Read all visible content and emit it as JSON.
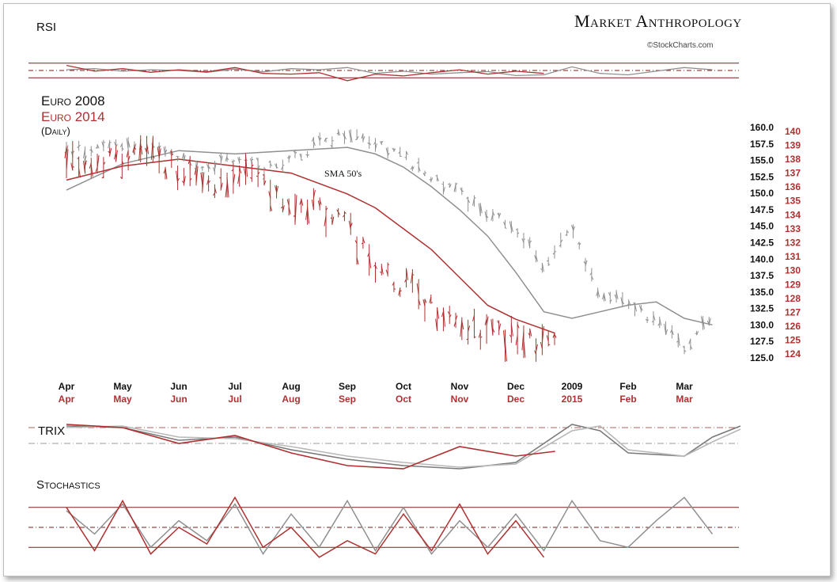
{
  "brand": {
    "title": "Market Anthropology",
    "source": "©StockCharts.com"
  },
  "legend": {
    "series_2008": "Euro 2008",
    "series_2014": "Euro 2014",
    "frequency": "(Daily)"
  },
  "annotation": "SMA 50's",
  "panels": {
    "rsi": "RSI",
    "trix": "TRIX",
    "stochastics": "Stochastics"
  },
  "colors": {
    "series_2008": "#909090",
    "series_2014": "#b03030",
    "axis_right_2014": "#b03030",
    "text": "#111111"
  },
  "chart_data": [
    {
      "type": "line",
      "panel": "price",
      "title": "Euro 2008 / Euro 2014",
      "x_labels_2008": [
        "Apr",
        "May",
        "Jun",
        "Jul",
        "Aug",
        "Sep",
        "Oct",
        "Nov",
        "Dec",
        "2009",
        "Feb",
        "Mar"
      ],
      "x_labels_2014": [
        "Apr",
        "May",
        "Jun",
        "Jul",
        "Aug",
        "Sep",
        "Oct",
        "Nov",
        "Dec",
        "2015",
        "Feb",
        "Mar"
      ],
      "y_left_ticks": [
        "160.0",
        "157.5",
        "155.0",
        "152.5",
        "150.0",
        "147.5",
        "145.0",
        "142.5",
        "140.0",
        "137.5",
        "135.0",
        "132.5",
        "130.0",
        "127.5",
        "125.0"
      ],
      "y_right_ticks": [
        "140",
        "139",
        "138",
        "137",
        "136",
        "135",
        "134",
        "133",
        "132",
        "131",
        "130",
        "129",
        "128",
        "127",
        "126",
        "125",
        "124"
      ],
      "ylim_left": [
        124.5,
        160.5
      ],
      "ylim_right": [
        123.5,
        140.5
      ],
      "series": [
        {
          "name": "Euro 2008",
          "axis": "left",
          "x": [
            0,
            0.5,
            1,
            1.5,
            2,
            2.5,
            3,
            3.5,
            4,
            4.5,
            5,
            5.5,
            6,
            6.5,
            7,
            7.5,
            8,
            8.5,
            9,
            9.5,
            10,
            10.5,
            11,
            11.5
          ],
          "values": [
            156.5,
            156.5,
            157.5,
            156.5,
            156,
            154,
            155.5,
            153.5,
            155.5,
            157.5,
            159.5,
            158,
            155.5,
            152,
            150,
            147,
            145,
            139,
            144.5,
            134.5,
            133.5,
            130.5,
            126.5,
            131.5
          ]
        },
        {
          "name": "SMA 50 (2008)",
          "axis": "left",
          "x": [
            0,
            1,
            2,
            3,
            4,
            5,
            5.5,
            6,
            6.5,
            7,
            7.5,
            8,
            8.5,
            9,
            9.5,
            10,
            10.5,
            11,
            11.5
          ],
          "values": [
            150.5,
            154.5,
            156.5,
            156,
            156.5,
            157,
            156,
            154,
            151,
            147.5,
            143.5,
            138,
            132,
            131,
            132,
            133,
            133.5,
            131,
            130
          ]
        },
        {
          "name": "Euro 2014",
          "axis": "right",
          "x": [
            0,
            0.5,
            1,
            1.5,
            2,
            2.5,
            3,
            3.5,
            4,
            4.5,
            5,
            5.5,
            6,
            6.5,
            7,
            7.5,
            8,
            8.5,
            8.7
          ],
          "values": [
            138,
            137.5,
            138,
            138,
            137,
            136,
            136.5,
            136.5,
            135,
            134.5,
            133,
            130.5,
            129,
            127.5,
            126.5,
            125.5,
            125,
            124.5,
            124.5
          ]
        },
        {
          "name": "SMA 50 (2014)",
          "axis": "right",
          "x": [
            0,
            1,
            2,
            3,
            4,
            5,
            5.5,
            6,
            6.5,
            7,
            7.5,
            8,
            8.7
          ],
          "values": [
            136.5,
            137.5,
            138,
            137.5,
            137,
            135.5,
            134.5,
            133,
            131.5,
            129.5,
            127.5,
            126.5,
            125.5
          ]
        }
      ]
    },
    {
      "type": "line",
      "panel": "rsi",
      "title": "RSI",
      "ylim": [
        0,
        100
      ],
      "reference_lines": [
        70,
        50,
        30
      ],
      "series": [
        {
          "name": "RSI 2008",
          "x": [
            0,
            0.5,
            1,
            1.5,
            2,
            2.5,
            3,
            3.5,
            4,
            4.5,
            5,
            5.5,
            6,
            6.5,
            7,
            7.5,
            8,
            8.5,
            9,
            9.5,
            10,
            10.5,
            11,
            11.5
          ],
          "values": [
            52,
            55,
            48,
            52,
            50,
            45,
            54,
            46,
            55,
            52,
            58,
            42,
            48,
            40,
            44,
            47,
            36,
            38,
            60,
            42,
            38,
            48,
            58,
            52
          ]
        },
        {
          "name": "RSI 2014",
          "x": [
            0,
            0.5,
            1,
            1.5,
            2,
            2.5,
            3,
            3.5,
            4,
            4.5,
            5,
            5.5,
            6,
            6.5,
            7,
            7.5,
            8,
            8.5
          ],
          "values": [
            64,
            48,
            55,
            45,
            52,
            46,
            58,
            42,
            40,
            44,
            22,
            40,
            35,
            44,
            52,
            40,
            48,
            42
          ]
        }
      ]
    },
    {
      "type": "line",
      "panel": "trix",
      "title": "TRIX",
      "ylim": [
        -1,
        1
      ],
      "reference_lines": [
        0.5,
        0
      ],
      "series": [
        {
          "name": "TRIX 2008",
          "x": [
            0,
            1,
            2,
            3,
            4,
            5,
            6,
            7,
            8,
            9,
            9.5,
            10,
            11,
            11.5,
            12
          ],
          "values": [
            0.55,
            0.5,
            0.1,
            0.2,
            -0.2,
            -0.5,
            -0.7,
            -0.8,
            -0.6,
            0.6,
            0.4,
            -0.3,
            -0.4,
            0.2,
            0.55
          ]
        },
        {
          "name": "Signal 2008",
          "x": [
            0,
            1,
            2,
            3,
            4,
            5,
            6,
            7,
            8,
            9,
            9.5,
            10,
            11,
            11.5,
            12
          ],
          "values": [
            0.5,
            0.55,
            0.2,
            0.15,
            -0.1,
            -0.4,
            -0.6,
            -0.75,
            -0.65,
            0.4,
            0.55,
            -0.2,
            -0.4,
            0.05,
            0.45
          ]
        },
        {
          "name": "TRIX 2014",
          "x": [
            0,
            1,
            2,
            3,
            4,
            5,
            6,
            7,
            8,
            8.7
          ],
          "values": [
            0.6,
            0.5,
            0.0,
            0.25,
            -0.3,
            -0.7,
            -0.8,
            -0.1,
            -0.4,
            -0.25
          ]
        }
      ]
    },
    {
      "type": "line",
      "panel": "stochastics",
      "title": "Stochastics",
      "ylim": [
        0,
        100
      ],
      "reference_lines": [
        80,
        50,
        20
      ],
      "series": [
        {
          "name": "Stoch 2008",
          "x": [
            0,
            0.5,
            1,
            1.5,
            2,
            2.5,
            3,
            3.5,
            4,
            4.5,
            5,
            5.5,
            6,
            6.5,
            7,
            7.5,
            8,
            8.5,
            9,
            9.5,
            10,
            10.5,
            11,
            11.5
          ],
          "values": [
            75,
            40,
            85,
            20,
            60,
            30,
            85,
            10,
            70,
            20,
            90,
            15,
            80,
            10,
            60,
            20,
            70,
            15,
            90,
            30,
            20,
            60,
            95,
            40
          ]
        },
        {
          "name": "Stoch 2014",
          "x": [
            0,
            0.5,
            1,
            1.5,
            2,
            2.5,
            3,
            3.5,
            4,
            4.5,
            5,
            5.5,
            6,
            6.5,
            7,
            7.5,
            8,
            8.5
          ],
          "values": [
            80,
            15,
            90,
            10,
            50,
            25,
            95,
            20,
            50,
            5,
            30,
            10,
            70,
            15,
            85,
            10,
            60,
            5
          ]
        }
      ]
    }
  ]
}
